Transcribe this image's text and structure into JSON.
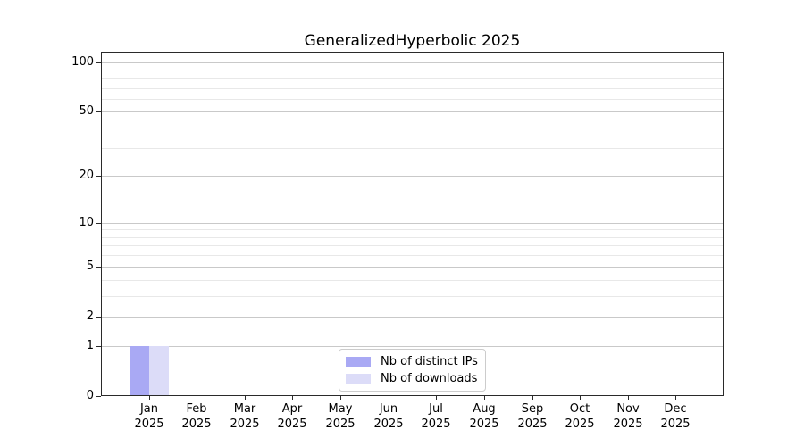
{
  "chart_data": {
    "type": "bar",
    "title": "GeneralizedHyperbolic 2025",
    "categories": [
      "Jan",
      "Feb",
      "Mar",
      "Apr",
      "May",
      "Jun",
      "Jul",
      "Aug",
      "Sep",
      "Oct",
      "Nov",
      "Dec"
    ],
    "category_year_label": "2025",
    "series": [
      {
        "name": "Nb of distinct IPs",
        "color": "#a9a9f4",
        "values": [
          1,
          0,
          0,
          0,
          0,
          0,
          0,
          0,
          0,
          0,
          0,
          0
        ]
      },
      {
        "name": "Nb of downloads",
        "color": "#dcdcf8",
        "values": [
          1,
          0,
          0,
          0,
          0,
          0,
          0,
          0,
          0,
          0,
          0,
          0
        ]
      }
    ],
    "xlabel": "",
    "ylabel": "",
    "yscale": "log1p",
    "ylim": [
      0,
      116
    ],
    "y_major_ticks": [
      0,
      1,
      2,
      5,
      10,
      20,
      50,
      100
    ],
    "y_minor_ticks": [
      3,
      4,
      6,
      7,
      8,
      9,
      30,
      40,
      60,
      70,
      80,
      90
    ],
    "grid": "horizontal",
    "legend_position": "lower center",
    "colors": {
      "background": "#ffffff",
      "text": "#000000",
      "spine": "#2a2a2a",
      "grid_major": "#c9c9c9",
      "grid_minor": "#e8e8e8",
      "legend_border": "#cccccc"
    }
  }
}
